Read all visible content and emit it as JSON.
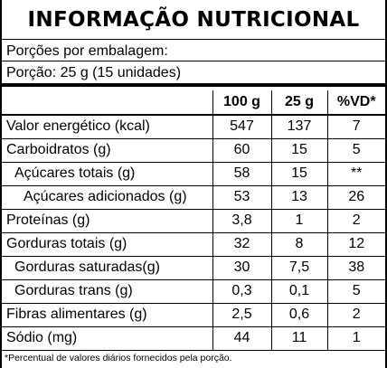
{
  "title": "INFORMAÇÃO NUTRICIONAL",
  "servings_line": "Porções por embalagem:",
  "portion_line": "Porção: 25 g (15 unidades)",
  "headers": [
    "",
    "100 g",
    "25 g",
    "%VD*"
  ],
  "rows": [
    {
      "name": "Valor energético (kcal)",
      "v100": "547",
      "v25": "137",
      "vd": "7"
    },
    {
      "name": "Carboidratos (g)",
      "v100": "60",
      "v25": "15",
      "vd": "5"
    },
    {
      "name": "Açúcares totais (g)",
      "v100": "58",
      "v25": "15",
      "vd": "**"
    },
    {
      "name": "Açúcares adicionados (g)",
      "v100": "53",
      "v25": "13",
      "vd": "26"
    },
    {
      "name": "Proteínas (g)",
      "v100": "3,8",
      "v25": "1",
      "vd": "2"
    },
    {
      "name": "Gorduras totais (g)",
      "v100": "32",
      "v25": "8",
      "vd": "12"
    },
    {
      "name": "Gorduras saturadas(g)",
      "v100": "30",
      "v25": "7,5",
      "vd": "38"
    },
    {
      "name": "Gorduras trans (g)",
      "v100": "0,3",
      "v25": "0,1",
      "vd": "5"
    },
    {
      "name": "Fibras alimentares (g)",
      "v100": "2,5",
      "v25": "0,6",
      "vd": "2"
    },
    {
      "name": "Sódio (mg)",
      "v100": "44",
      "v25": "11",
      "vd": "1"
    }
  ],
  "footnote": "*Percentual de valores diários fornecidos pela porção."
}
